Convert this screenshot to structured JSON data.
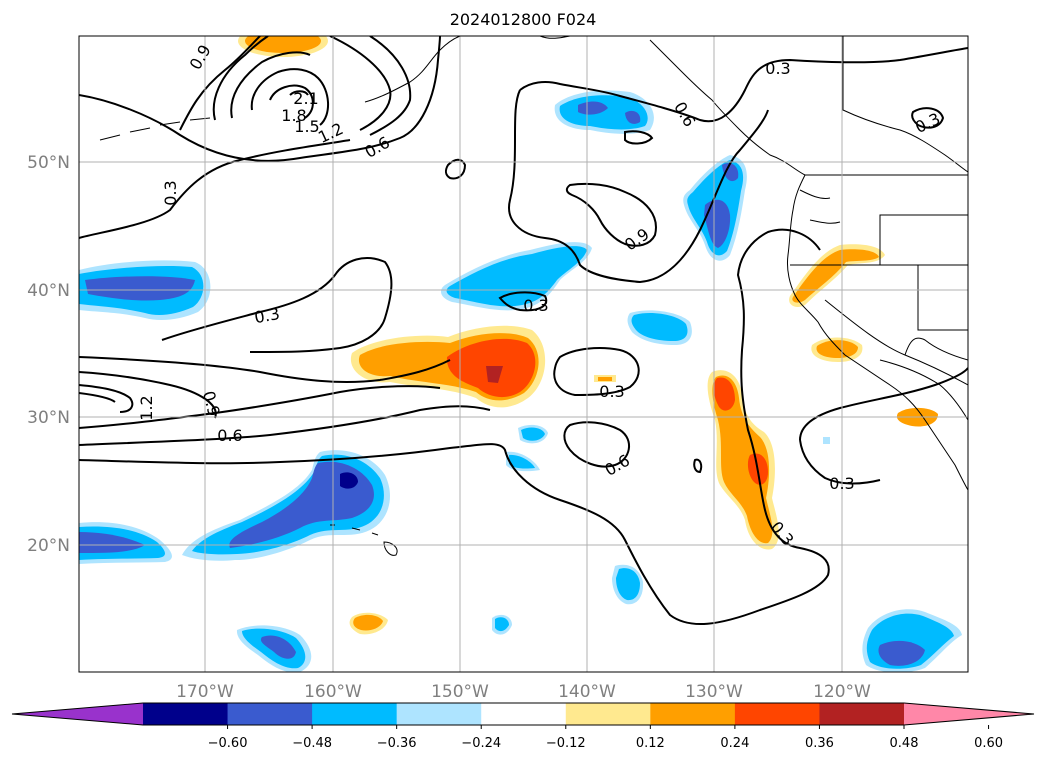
{
  "title": "2024012800 F024",
  "map": {
    "lat_labels": [
      "50°N",
      "40°N",
      "30°N",
      "20°N"
    ],
    "lon_labels": [
      "170°W",
      "160°W",
      "150°W",
      "140°W",
      "130°W",
      "120°W"
    ],
    "contour_labels": [
      "0.9",
      "2.1",
      "1.8",
      "1.5",
      "1.2",
      "0.6",
      "0.3",
      "0.3",
      "0.9",
      "0.3",
      "0.3",
      "1.2",
      "0.9",
      "0.6",
      "0.3",
      "0.6",
      "0.3",
      "0.3",
      "0.6",
      "0.3"
    ],
    "positive_color": "#ff9f00",
    "negative_color": "#00bbff"
  },
  "colorbar": {
    "ticks": [
      "−0.60",
      "−0.48",
      "−0.36",
      "−0.24",
      "−0.12",
      "0.12",
      "0.24",
      "0.36",
      "0.48",
      "0.60"
    ],
    "colors": [
      "#9932cc",
      "#00008b",
      "#3a5bcf",
      "#00bbff",
      "#aee4ff",
      "#ffffff",
      "#ffe98f",
      "#ff9f00",
      "#ff4500",
      "#b22222",
      "#ff87a8"
    ]
  }
}
